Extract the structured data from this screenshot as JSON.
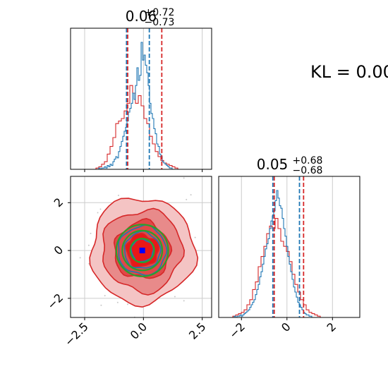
{
  "chart_data": {
    "type": "corner",
    "kl_label": "KL = 0.00",
    "colors": {
      "series_a": "#1f77b4",
      "series_b": "#d62728",
      "contour_green": "#2ca02c",
      "marker_blue": "#0000ff",
      "grid": "#cccccc"
    },
    "panels": [
      {
        "id": "hist-x",
        "type": "histogram",
        "title": {
          "base": "0.06",
          "sup": "+0.72",
          "sub": "−0.73"
        },
        "xlim": [
          -3.1,
          2.9
        ],
        "series_a_quantiles": [
          -0.72,
          0.25
        ],
        "series_b_quantiles": [
          -0.67,
          0.78
        ],
        "series_a": {
          "bin_start": -3.1,
          "bin_width": 0.06,
          "counts": [
            0,
            0,
            0,
            0,
            0,
            0,
            0,
            0,
            0,
            0,
            0,
            0,
            0,
            0,
            0,
            0,
            0,
            0,
            0,
            0,
            1,
            0,
            1,
            1,
            2,
            1,
            3,
            2,
            4,
            3,
            6,
            8,
            10,
            9,
            14,
            18,
            22,
            26,
            30,
            33,
            38,
            45,
            48,
            52,
            60,
            55,
            66,
            80,
            70,
            74,
            100,
            86,
            90,
            82,
            76,
            66,
            52,
            44,
            40,
            32,
            28,
            20,
            18,
            12,
            10,
            6,
            5,
            4,
            3,
            2,
            1,
            1,
            0,
            0,
            0,
            0,
            0,
            0,
            0,
            0,
            0,
            0,
            0,
            0,
            0,
            0,
            0,
            0,
            0,
            0,
            0,
            0,
            0,
            0,
            0,
            0,
            0,
            0,
            0,
            0
          ]
        },
        "series_b": {
          "bin_start": -3.1,
          "bin_width": 0.12,
          "counts": [
            0,
            0,
            0,
            0,
            0,
            0,
            0,
            0,
            0,
            1,
            2,
            4,
            6,
            12,
            18,
            25,
            36,
            38,
            40,
            46,
            52,
            66,
            60,
            52,
            58,
            50,
            40,
            36,
            26,
            20,
            14,
            10,
            7,
            5,
            4,
            3,
            2,
            1,
            0,
            0,
            0,
            0,
            0,
            0,
            0,
            0,
            0,
            0,
            0,
            0
          ]
        }
      },
      {
        "id": "hist-y",
        "type": "histogram",
        "title": {
          "base": "0.05",
          "sup": "+0.68",
          "sub": "−0.68"
        },
        "xlim": [
          -3.0,
          3.2
        ],
        "series_a_quantiles": [
          -0.62,
          0.55
        ],
        "series_b_quantiles": [
          -0.56,
          0.73
        ],
        "series_a": {
          "bin_start": -3.0,
          "bin_width": 0.062,
          "counts": [
            0,
            0,
            0,
            0,
            0,
            0,
            0,
            0,
            0,
            0,
            0,
            1,
            0,
            1,
            1,
            2,
            1,
            2,
            3,
            4,
            5,
            6,
            8,
            10,
            12,
            14,
            18,
            22,
            26,
            32,
            36,
            42,
            48,
            54,
            58,
            62,
            70,
            76,
            80,
            84,
            92,
            100,
            94,
            88,
            86,
            78,
            70,
            64,
            56,
            48,
            42,
            36,
            30,
            24,
            20,
            16,
            12,
            10,
            8,
            6,
            4,
            3,
            2,
            2,
            1,
            1,
            0,
            0,
            0,
            0,
            0,
            0,
            0,
            0,
            0,
            0,
            0,
            0,
            0,
            0,
            0,
            0,
            0,
            0,
            0,
            0,
            0,
            0,
            0,
            0,
            0,
            0,
            0,
            0,
            0,
            0,
            0,
            0,
            0,
            0
          ]
        },
        "series_b": {
          "bin_start": -3.0,
          "bin_width": 0.124,
          "counts": [
            0,
            0,
            0,
            0,
            0,
            1,
            2,
            3,
            4,
            6,
            10,
            14,
            22,
            28,
            40,
            48,
            56,
            66,
            72,
            70,
            78,
            70,
            60,
            56,
            52,
            44,
            34,
            26,
            20,
            14,
            10,
            6,
            4,
            3,
            2,
            1,
            0,
            0,
            0,
            0,
            0,
            0,
            0,
            0,
            0,
            0,
            0,
            0,
            0,
            0
          ]
        }
      },
      {
        "id": "joint",
        "type": "contour",
        "xlim": [
          -3.1,
          2.9
        ],
        "ylim": [
          -2.8,
          3.1
        ],
        "red_levels_sigma": [
          2.6,
          2.0,
          1.4,
          0.8
        ],
        "green_levels_sigma": [
          1.3,
          1.0,
          0.6
        ],
        "blue_levels_sigma": [
          1.2,
          0.9,
          0.55
        ],
        "marker": {
          "x": -0.05,
          "y": 0.0
        }
      }
    ],
    "x_ticks_hist_x": [
      "−2.5",
      "0.0",
      "2.5"
    ],
    "x_tick_values_hist_x": [
      -2.5,
      0.0,
      2.5
    ],
    "y_ticks_joint": [
      "−2",
      "0",
      "2"
    ],
    "y_tick_values_joint": [
      -2,
      0,
      2
    ],
    "x_ticks_hist_y": [
      "−2",
      "0",
      "2"
    ],
    "x_tick_values_hist_y": [
      -2,
      0,
      2
    ]
  }
}
